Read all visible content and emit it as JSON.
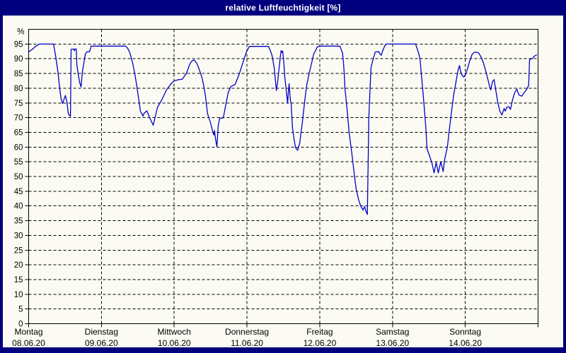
{
  "window": {
    "title": "relative Luftfeuchtigkeit [%]"
  },
  "colors": {
    "frame_border": "#00007E",
    "titlebar_bg": "#00007E",
    "title_text": "#FFFFFF",
    "plot_bg": "#FBFBF3",
    "axis": "#000000",
    "grid": "#000000",
    "tick_text": "#000000",
    "line": "#0000C8"
  },
  "chart_data": {
    "type": "line",
    "title": "relative Luftfeuchtigkeit [%]",
    "ylabel": "%",
    "ylim": [
      0,
      100
    ],
    "ytick_start": 0,
    "ytick_end": 95,
    "ytick_step": 5,
    "grid": true,
    "legend": "none",
    "x_axis_days": [
      {
        "label": "Montag",
        "date": "08.06.20"
      },
      {
        "label": "Dienstag",
        "date": "09.06.20"
      },
      {
        "label": "Mittwoch",
        "date": "10.06.20"
      },
      {
        "label": "Donnerstag",
        "date": "11.06.20"
      },
      {
        "label": "Freitag",
        "date": "12.06.20"
      },
      {
        "label": "Samstag",
        "date": "13.06.20"
      },
      {
        "label": "Sonntag",
        "date": "14.06.20"
      }
    ],
    "x_unit": "hours since Monday 00:00",
    "x_range_hours": [
      0,
      168
    ],
    "series": [
      {
        "name": "relative Luftfeuchtigkeit [%]",
        "color": "#0000C8",
        "points": [
          [
            0,
            92.3
          ],
          [
            1.2,
            93.2
          ],
          [
            2.3,
            94.2
          ],
          [
            3.5,
            95
          ],
          [
            8.2,
            95
          ],
          [
            8.9,
            91
          ],
          [
            9.6,
            86
          ],
          [
            10.3,
            79.5
          ],
          [
            10.7,
            76.3
          ],
          [
            11.2,
            74.8
          ],
          [
            12.1,
            77.5
          ],
          [
            12.6,
            75.5
          ],
          [
            13.1,
            71.3
          ],
          [
            13.8,
            70.4
          ],
          [
            14.0,
            93.2
          ],
          [
            14.9,
            93.3
          ],
          [
            15.1,
            92.7
          ],
          [
            15.3,
            93.3
          ],
          [
            15.7,
            93.3
          ],
          [
            15.9,
            88
          ],
          [
            16.3,
            85
          ],
          [
            16.8,
            82
          ],
          [
            17.3,
            80.4
          ],
          [
            17.7,
            85.5
          ],
          [
            18.2,
            88.5
          ],
          [
            18.7,
            91.5
          ],
          [
            19.1,
            92.3
          ],
          [
            20.1,
            92.4
          ],
          [
            20.6,
            94.3
          ],
          [
            32.0,
            94.3
          ],
          [
            32.7,
            93.5
          ],
          [
            33.4,
            92
          ],
          [
            34.3,
            88.5
          ],
          [
            35.0,
            85
          ],
          [
            35.7,
            80.5
          ],
          [
            36.2,
            77
          ],
          [
            36.9,
            72
          ],
          [
            37.3,
            71.4
          ],
          [
            37.7,
            70.5
          ],
          [
            38.1,
            71.5
          ],
          [
            39.0,
            72.3
          ],
          [
            40.1,
            69.5
          ],
          [
            41.1,
            67.4
          ],
          [
            41.8,
            70.5
          ],
          [
            42.5,
            73.5
          ],
          [
            43.9,
            76
          ],
          [
            45.5,
            79.5
          ],
          [
            47.1,
            81.7
          ],
          [
            48.0,
            82.5
          ],
          [
            49.5,
            82.9
          ],
          [
            50.6,
            83
          ],
          [
            52.0,
            85
          ],
          [
            53.2,
            88.3
          ],
          [
            53.9,
            89.3
          ],
          [
            54.6,
            89.6
          ],
          [
            55.5,
            88.3
          ],
          [
            56.2,
            86.5
          ],
          [
            57.2,
            83.5
          ],
          [
            57.9,
            80
          ],
          [
            58.3,
            77.3
          ],
          [
            59.0,
            71.3
          ],
          [
            60.0,
            68.2
          ],
          [
            60.7,
            65.3
          ],
          [
            61.1,
            64.1
          ],
          [
            61.3,
            65.6
          ],
          [
            61.6,
            62.9
          ],
          [
            62.1,
            60.1
          ],
          [
            62.5,
            67.3
          ],
          [
            63.0,
            69.8
          ],
          [
            64.2,
            69.9
          ],
          [
            64.9,
            73.7
          ],
          [
            65.8,
            78.5
          ],
          [
            66.7,
            80.6
          ],
          [
            68.1,
            81.3
          ],
          [
            69.5,
            85
          ],
          [
            70.9,
            89.5
          ],
          [
            71.9,
            92.5
          ],
          [
            72.8,
            94.2
          ],
          [
            79.1,
            94.2
          ],
          [
            79.8,
            92.5
          ],
          [
            80.3,
            91
          ],
          [
            81.0,
            86.9
          ],
          [
            81.7,
            79.2
          ],
          [
            82.1,
            82
          ],
          [
            82.6,
            86.9
          ],
          [
            83.1,
            91.5
          ],
          [
            83.3,
            92.8
          ],
          [
            83.5,
            92.1
          ],
          [
            83.8,
            92.6
          ],
          [
            84.2,
            88
          ],
          [
            84.4,
            84.5
          ],
          [
            84.9,
            79.7
          ],
          [
            85.4,
            74.9
          ],
          [
            85.6,
            78
          ],
          [
            85.9,
            81.5
          ],
          [
            86.3,
            76.1
          ],
          [
            86.6,
            74.5
          ],
          [
            87.0,
            66.5
          ],
          [
            87.5,
            62.9
          ],
          [
            88.0,
            59.9
          ],
          [
            88.7,
            58.9
          ],
          [
            89.4,
            61.3
          ],
          [
            89.8,
            64.9
          ],
          [
            90.3,
            68.6
          ],
          [
            91.0,
            75.3
          ],
          [
            91.7,
            81
          ],
          [
            92.6,
            85.5
          ],
          [
            93.3,
            88.5
          ],
          [
            94.0,
            91.6
          ],
          [
            94.7,
            93
          ],
          [
            95.2,
            94
          ],
          [
            96.1,
            94.3
          ],
          [
            102.7,
            94.3
          ],
          [
            103.1,
            93
          ],
          [
            103.5,
            92
          ],
          [
            103.8,
            88.9
          ],
          [
            104.1,
            84.9
          ],
          [
            104.3,
            80.1
          ],
          [
            105.0,
            73
          ],
          [
            105.7,
            64.9
          ],
          [
            106.6,
            57.7
          ],
          [
            107.3,
            51.4
          ],
          [
            108.0,
            45.7
          ],
          [
            108.9,
            41.8
          ],
          [
            109.6,
            39.8
          ],
          [
            110.3,
            38.6
          ],
          [
            110.8,
            39.8
          ],
          [
            111.2,
            38.3
          ],
          [
            111.7,
            37.1
          ],
          [
            112.2,
            70.6
          ],
          [
            112.9,
            87
          ],
          [
            113.6,
            89.8
          ],
          [
            114.3,
            92.3
          ],
          [
            115.5,
            92.4
          ],
          [
            115.9,
            91.5
          ],
          [
            116.3,
            91.2
          ],
          [
            116.8,
            92.8
          ],
          [
            117.5,
            94.5
          ],
          [
            118.0,
            95
          ],
          [
            127.6,
            95
          ],
          [
            128.1,
            93.5
          ],
          [
            128.6,
            92
          ],
          [
            129.1,
            89.7
          ],
          [
            129.5,
            84.9
          ],
          [
            130.0,
            79.3
          ],
          [
            130.5,
            73
          ],
          [
            131.0,
            66.5
          ],
          [
            131.4,
            59.4
          ],
          [
            132.4,
            56.5
          ],
          [
            133.0,
            54.6
          ],
          [
            133.7,
            51.2
          ],
          [
            134.4,
            54.8
          ],
          [
            135.1,
            51.2
          ],
          [
            135.9,
            55
          ],
          [
            136.7,
            51.7
          ],
          [
            137.2,
            55.8
          ],
          [
            138.1,
            60.1
          ],
          [
            138.8,
            66.5
          ],
          [
            139.5,
            72.5
          ],
          [
            140.2,
            78
          ],
          [
            140.9,
            82
          ],
          [
            141.6,
            86.1
          ],
          [
            142.1,
            87.7
          ],
          [
            142.5,
            85.5
          ],
          [
            143.0,
            84.3
          ],
          [
            143.5,
            83.8
          ],
          [
            144.0,
            84.5
          ],
          [
            144.7,
            86.5
          ],
          [
            145.4,
            89
          ],
          [
            146.3,
            91.6
          ],
          [
            147.2,
            92.3
          ],
          [
            148.4,
            92
          ],
          [
            149.3,
            90.4
          ],
          [
            150.0,
            88.5
          ],
          [
            150.7,
            86
          ],
          [
            151.4,
            83.2
          ],
          [
            152.1,
            80.2
          ],
          [
            152.4,
            79.4
          ],
          [
            153.0,
            82.3
          ],
          [
            153.5,
            82.9
          ],
          [
            154.0,
            79.7
          ],
          [
            154.7,
            75.3
          ],
          [
            155.4,
            72.2
          ],
          [
            156.1,
            70.9
          ],
          [
            156.8,
            73.1
          ],
          [
            157.2,
            72.2
          ],
          [
            157.7,
            73.5
          ],
          [
            158.4,
            73.7
          ],
          [
            158.9,
            72.8
          ],
          [
            159.6,
            76.1
          ],
          [
            160.3,
            78.5
          ],
          [
            161.0,
            79.7
          ],
          [
            161.7,
            77.7
          ],
          [
            162.6,
            77.3
          ],
          [
            163.3,
            78.3
          ],
          [
            164.2,
            79.5
          ],
          [
            164.9,
            80.9
          ],
          [
            165.2,
            89.7
          ],
          [
            166.1,
            90.1
          ],
          [
            166.8,
            90.9
          ],
          [
            167.5,
            91.3
          ]
        ]
      }
    ]
  }
}
